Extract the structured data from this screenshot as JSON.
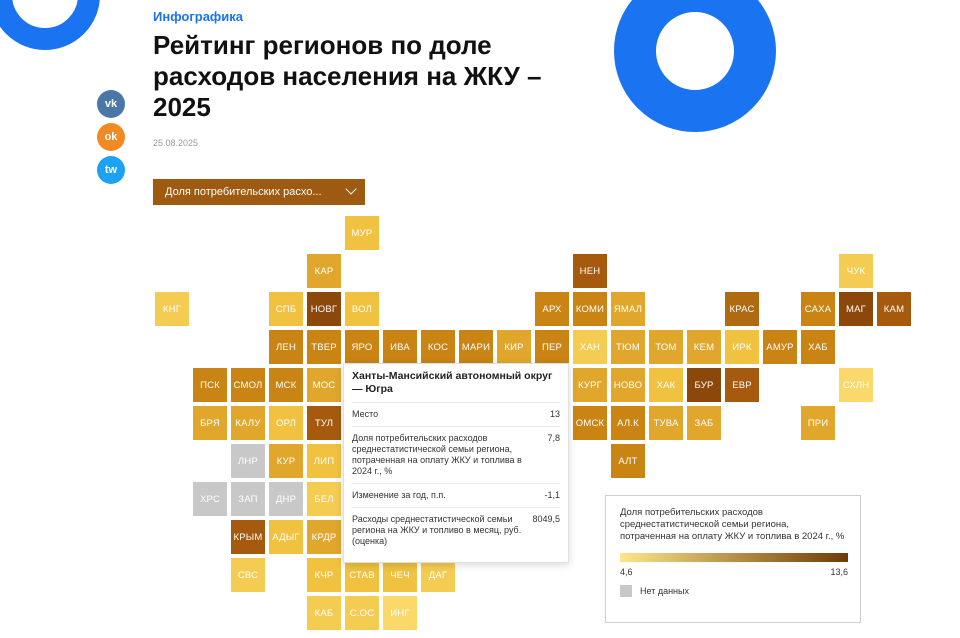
{
  "header": {
    "category": "Инфографика",
    "title": "Рейтинг регионов по доле расходов населения на ЖКУ – 2025",
    "date": "25.08.2025"
  },
  "social": {
    "vk": "vk",
    "ok": "ok",
    "twitter": "tw"
  },
  "dropdown": {
    "label": "Доля потребительских расхо..."
  },
  "colors": {
    "accent": "#1a73f0",
    "dropdown_bg": "#9e5a10",
    "scale_low": "#fde68a",
    "scale_high": "#6f3a08",
    "no_data": "#c8c8c8"
  },
  "tiles": [
    {
      "code": "МУР",
      "col": 5,
      "row": 0,
      "color": "#f0c23f"
    },
    {
      "code": "КАР",
      "col": 4,
      "row": 1,
      "color": "#e0a72c"
    },
    {
      "code": "НЕН",
      "col": 11,
      "row": 1,
      "color": "#a55a0e"
    },
    {
      "code": "ЧУК",
      "col": 18,
      "row": 1,
      "color": "#f5cc52"
    },
    {
      "code": "КНГ",
      "col": 0,
      "row": 2,
      "color": "#f5cc52"
    },
    {
      "code": "СПБ",
      "col": 3,
      "row": 2,
      "color": "#f0c23f"
    },
    {
      "code": "НОВГ",
      "col": 4,
      "row": 2,
      "color": "#8c480a"
    },
    {
      "code": "ВОЛ",
      "col": 5,
      "row": 2,
      "color": "#f0c23f"
    },
    {
      "code": "АРХ",
      "col": 10,
      "row": 2,
      "color": "#c98414"
    },
    {
      "code": "КОМИ",
      "col": 11,
      "row": 2,
      "color": "#c98414"
    },
    {
      "code": "ЯМАЛ",
      "col": 12,
      "row": 2,
      "color": "#e0a72c"
    },
    {
      "code": "КРАС",
      "col": 15,
      "row": 2,
      "color": "#b06a10"
    },
    {
      "code": "САХА",
      "col": 17,
      "row": 2,
      "color": "#c98414"
    },
    {
      "code": "МАГ",
      "col": 18,
      "row": 2,
      "color": "#8c480a"
    },
    {
      "code": "КАМ",
      "col": 19,
      "row": 2,
      "color": "#a55a0e"
    },
    {
      "code": "ЛЕН",
      "col": 3,
      "row": 3,
      "color": "#c98414"
    },
    {
      "code": "ТВЕР",
      "col": 4,
      "row": 3,
      "color": "#c98414"
    },
    {
      "code": "ЯРО",
      "col": 5,
      "row": 3,
      "color": "#c98414"
    },
    {
      "code": "ИВА",
      "col": 6,
      "row": 3,
      "color": "#c98414"
    },
    {
      "code": "КОС",
      "col": 7,
      "row": 3,
      "color": "#c98414"
    },
    {
      "code": "МАРИ",
      "col": 8,
      "row": 3,
      "color": "#c98414"
    },
    {
      "code": "КИР",
      "col": 9,
      "row": 3,
      "color": "#e0a72c"
    },
    {
      "code": "ПЕР",
      "col": 10,
      "row": 3,
      "color": "#c98414"
    },
    {
      "code": "ХАН",
      "col": 11,
      "row": 3,
      "color": "#f5cc52"
    },
    {
      "code": "ТЮМ",
      "col": 12,
      "row": 3,
      "color": "#e0a72c"
    },
    {
      "code": "ТОМ",
      "col": 13,
      "row": 3,
      "color": "#e0a72c"
    },
    {
      "code": "КЕМ",
      "col": 14,
      "row": 3,
      "color": "#e0a72c"
    },
    {
      "code": "ИРК",
      "col": 15,
      "row": 3,
      "color": "#f0c23f"
    },
    {
      "code": "АМУР",
      "col": 16,
      "row": 3,
      "color": "#c98414"
    },
    {
      "code": "ХАБ",
      "col": 17,
      "row": 3,
      "color": "#c98414"
    },
    {
      "code": "ПСК",
      "col": 1,
      "row": 4,
      "color": "#c98414"
    },
    {
      "code": "СМОЛ",
      "col": 2,
      "row": 4,
      "color": "#c98414"
    },
    {
      "code": "МСК",
      "col": 3,
      "row": 4,
      "color": "#c98414"
    },
    {
      "code": "МОС",
      "col": 4,
      "row": 4,
      "color": "#e0a72c"
    },
    {
      "code": "КУРГ",
      "col": 11,
      "row": 4,
      "color": "#e0a72c"
    },
    {
      "code": "НОВО",
      "col": 12,
      "row": 4,
      "color": "#e0a72c"
    },
    {
      "code": "ХАК",
      "col": 13,
      "row": 4,
      "color": "#f0c23f"
    },
    {
      "code": "БУР",
      "col": 14,
      "row": 4,
      "color": "#8c480a"
    },
    {
      "code": "ЕВР",
      "col": 15,
      "row": 4,
      "color": "#a55a0e"
    },
    {
      "code": "СХЛН",
      "col": 18,
      "row": 4,
      "color": "#fad86a"
    },
    {
      "code": "БРЯ",
      "col": 1,
      "row": 5,
      "color": "#e0a72c"
    },
    {
      "code": "КАЛУ",
      "col": 2,
      "row": 5,
      "color": "#e0a72c"
    },
    {
      "code": "ОРЛ",
      "col": 3,
      "row": 5,
      "color": "#f0c23f"
    },
    {
      "code": "ТУЛ",
      "col": 4,
      "row": 5,
      "color": "#a55a0e"
    },
    {
      "code": "ОМСК",
      "col": 11,
      "row": 5,
      "color": "#c98414"
    },
    {
      "code": "АЛ.К",
      "col": 12,
      "row": 5,
      "color": "#c98414"
    },
    {
      "code": "ТУВА",
      "col": 13,
      "row": 5,
      "color": "#e0a72c"
    },
    {
      "code": "ЗАБ",
      "col": 14,
      "row": 5,
      "color": "#e0a72c"
    },
    {
      "code": "ПРИ",
      "col": 17,
      "row": 5,
      "color": "#e0a72c"
    },
    {
      "code": "ЛНР",
      "col": 2,
      "row": 6,
      "color": "#c8c8c8"
    },
    {
      "code": "КУР",
      "col": 3,
      "row": 6,
      "color": "#e0a72c"
    },
    {
      "code": "ЛИП",
      "col": 4,
      "row": 6,
      "color": "#f0c23f"
    },
    {
      "code": "АЛТ",
      "col": 12,
      "row": 6,
      "color": "#c98414"
    },
    {
      "code": "ХРС",
      "col": 1,
      "row": 7,
      "color": "#c8c8c8"
    },
    {
      "code": "ЗАП",
      "col": 2,
      "row": 7,
      "color": "#c8c8c8"
    },
    {
      "code": "ДНР",
      "col": 3,
      "row": 7,
      "color": "#c8c8c8"
    },
    {
      "code": "БЕЛ",
      "col": 4,
      "row": 7,
      "color": "#f5cc52"
    },
    {
      "code": "КРЫМ",
      "col": 2,
      "row": 8,
      "color": "#a55a0e"
    },
    {
      "code": "АДЫГ",
      "col": 3,
      "row": 8,
      "color": "#f0c23f"
    },
    {
      "code": "КРДР",
      "col": 4,
      "row": 8,
      "color": "#e0a72c"
    },
    {
      "code": "СВС",
      "col": 2,
      "row": 9,
      "color": "#f5cc52"
    },
    {
      "code": "КЧР",
      "col": 4,
      "row": 9,
      "color": "#f0c23f"
    },
    {
      "code": "СТАВ",
      "col": 5,
      "row": 9,
      "color": "#f0c23f"
    },
    {
      "code": "ЧЕЧ",
      "col": 6,
      "row": 9,
      "color": "#f0c23f"
    },
    {
      "code": "ДАГ",
      "col": 7,
      "row": 9,
      "color": "#f5cc52"
    },
    {
      "code": "КАБ",
      "col": 4,
      "row": 10,
      "color": "#f5cc52"
    },
    {
      "code": "С.ОС",
      "col": 5,
      "row": 10,
      "color": "#f5cc52"
    },
    {
      "code": "ИНГ",
      "col": 6,
      "row": 10,
      "color": "#fad86a"
    }
  ],
  "tooltip": {
    "title": "Ханты-Мансийский автономный округ — Югра",
    "rows": [
      {
        "label": "Место",
        "value": "13"
      },
      {
        "label": "Доля потребительских расходов среднестатистической семьи региона, потраченная на оплату ЖКУ и топлива в 2024 г., %",
        "value": "7,8"
      },
      {
        "label": "Изменение за год, п.п.",
        "value": "-1,1"
      },
      {
        "label": "Расходы среднестатистической семьи региона на ЖКУ и топливо в месяц, руб. (оценка)",
        "value": "8049,5"
      }
    ]
  },
  "legend": {
    "title": "Доля потребительских расходов среднестатистической семьи региона, потраченная на оплату ЖКУ и топлива в 2024 г., %",
    "min": "4,6",
    "max": "13,6",
    "no_data_label": "Нет данных"
  }
}
